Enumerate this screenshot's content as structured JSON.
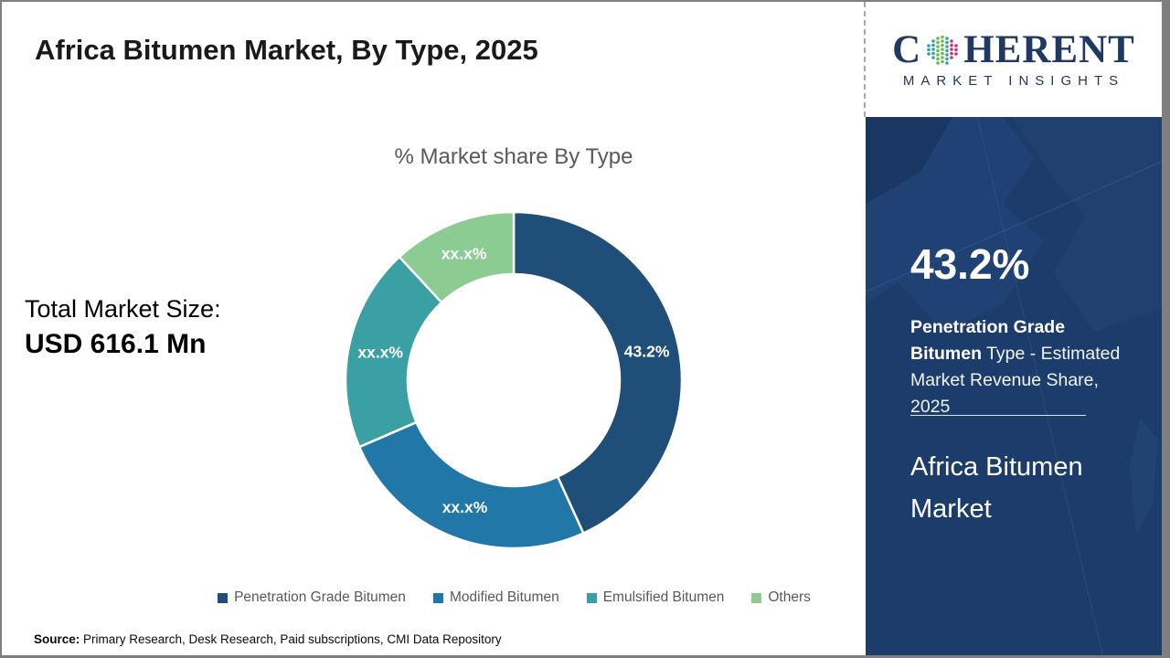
{
  "header": {
    "title": "Africa Bitumen Market, By Type, 2025"
  },
  "logo": {
    "word_start": "C",
    "word_end": "HERENT",
    "tagline": "MARKET INSIGHTS"
  },
  "left_panel": {
    "total_label": "Total Market Size:",
    "total_value": "USD 616.1 Mn"
  },
  "chart_data": {
    "type": "pie",
    "subtype": "donut",
    "title": "% Market share By Type",
    "start_angle_deg": 0,
    "direction": "clockwise",
    "inner_radius_ratio": 0.63,
    "legend_position": "bottom",
    "segments": [
      {
        "name": "Penetration Grade Bitumen",
        "label": "43.2%",
        "value_pct": 43.2,
        "color": "#1F4E79"
      },
      {
        "name": "Modified Bitumen",
        "label": "xx.x%",
        "value_pct": 25.3,
        "color": "#2177A8"
      },
      {
        "name": "Emulsified Bitumen",
        "label": "xx.x%",
        "value_pct": 19.6,
        "color": "#3AA0A4"
      },
      {
        "name": "Others",
        "label": "xx.x%",
        "value_pct": 11.9,
        "color": "#8CCB92"
      }
    ],
    "values_note": "xx.x% segments are masked in the source image; value_pct estimated from arc angles"
  },
  "sidebar": {
    "stat_value": "43.2%",
    "stat_bold_1": "Penetration Grade",
    "stat_bold_2": "Bitumen",
    "stat_rest": " Type - Estimated Market Revenue Share, 2025",
    "market_name": "Africa Bitumen Market"
  },
  "footer": {
    "source_label": "Source:",
    "source_text": " Primary Research, Desk Research, Paid subscriptions, CMI Data Repository"
  },
  "colors": {
    "sidebar_bg": "#1c3c6b",
    "brand_navy": "#1f3864",
    "title_text": "#1a1a1a",
    "muted_text": "#595959",
    "frame_gray": "#7f7f7f"
  }
}
